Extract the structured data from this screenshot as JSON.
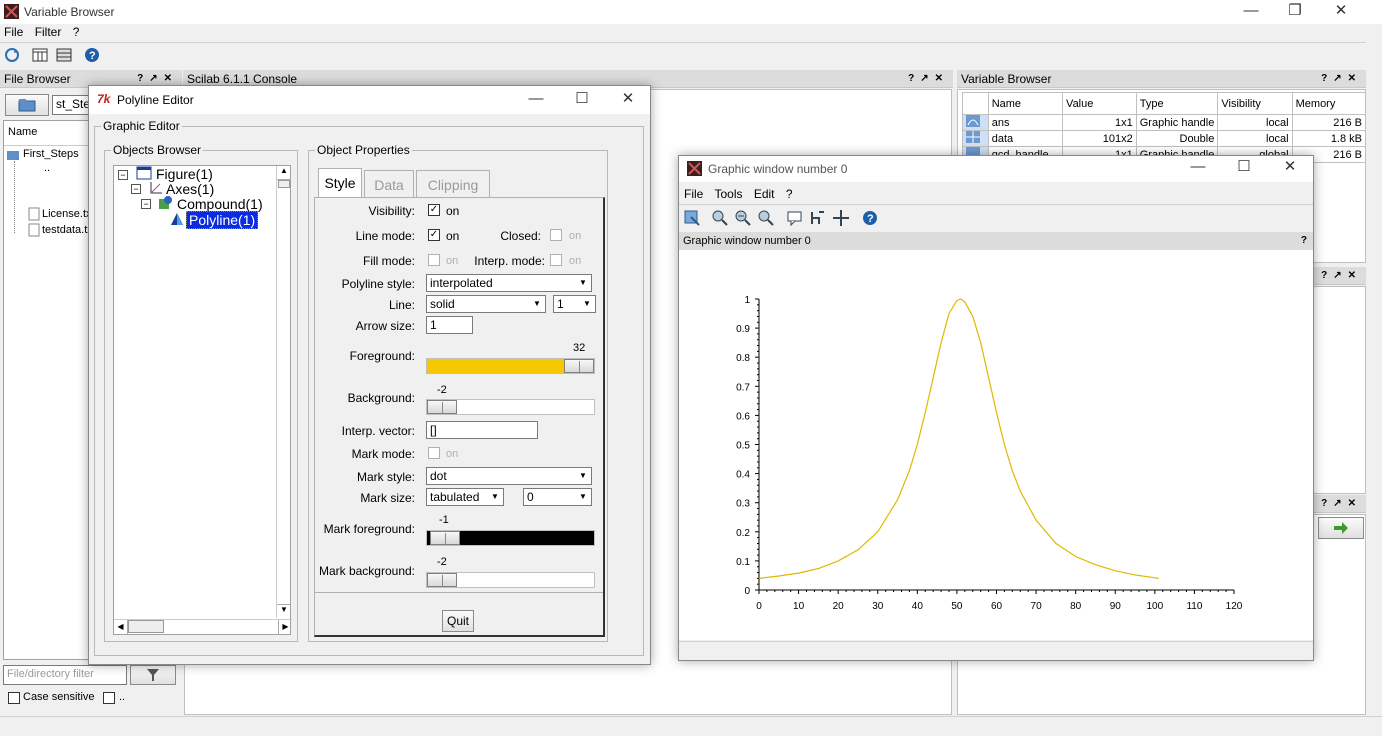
{
  "main_window": {
    "title": "Variable Browser",
    "menu": [
      "File",
      "Filter",
      "?"
    ]
  },
  "file_browser": {
    "title": "File Browser",
    "path_value": "st_Steps",
    "column_name": "Name",
    "items": [
      "First_Steps",
      "..",
      "License.txt",
      "testdata.txt"
    ],
    "filter_placeholder": "File/directory filter",
    "case_sensitive": "Case sensitive",
    "regexp": ".."
  },
  "console": {
    "title": "Scilab 6.1.1 Console"
  },
  "variable_browser": {
    "title": "Variable Browser",
    "columns": [
      "Name",
      "Value",
      "Type",
      "Visibility",
      "Memory"
    ],
    "rows": [
      {
        "name": "ans",
        "value": "1x1",
        "type": "Graphic handle",
        "visibility": "local",
        "memory": "216 B"
      },
      {
        "name": "data",
        "value": "101x2",
        "type": "Double",
        "visibility": "local",
        "memory": "1.8 kB"
      },
      {
        "name": "gcd_handle",
        "value": "1x1",
        "type": "Graphic handle",
        "visibility": "global",
        "memory": "216 B"
      }
    ]
  },
  "polyline_editor": {
    "title": "Polyline Editor",
    "graphic_editor": "Graphic Editor",
    "objects_browser": "Objects Browser",
    "tree": [
      "Figure(1)",
      "Axes(1)",
      "Compound(1)",
      "Polyline(1)"
    ],
    "object_properties": "Object Properties",
    "tabs": [
      "Style",
      "Data",
      "Clipping"
    ],
    "labels": {
      "visibility": "Visibility:",
      "line_mode": "Line mode:",
      "closed": "Closed:",
      "fill_mode": "Fill mode:",
      "interp_mode": "Interp. mode:",
      "polyline_style": "Polyline style:",
      "line": "Line:",
      "arrow_size": "Arrow size:",
      "foreground": "Foreground:",
      "background": "Background:",
      "interp_vector": "Interp. vector:",
      "mark_mode": "Mark mode:",
      "mark_style": "Mark style:",
      "mark_size": "Mark size:",
      "mark_foreground": "Mark foreground:",
      "mark_background": "Mark background:"
    },
    "on": "on",
    "values": {
      "polyline_style": "interpolated",
      "line_style": "solid",
      "line_width": "1",
      "arrow_size": "1",
      "foreground": "32",
      "background": "-2",
      "interp_vector": "[]",
      "mark_style": "dot",
      "mark_size_unit": "tabulated",
      "mark_size": "0",
      "mark_foreground": "-1",
      "mark_background": "-2"
    },
    "quit": "Quit",
    "colors": {
      "foreground": "#f5c800",
      "mark_foreground": "#000000"
    }
  },
  "graphic_window": {
    "title": "Graphic window number 0",
    "menu": [
      "File",
      "Tools",
      "Edit",
      "?"
    ],
    "dock_title": "Graphic window number 0"
  },
  "chart_data": {
    "type": "line",
    "xlim": [
      0,
      120
    ],
    "ylim": [
      0,
      1
    ],
    "x_ticks": [
      0,
      10,
      20,
      30,
      40,
      50,
      60,
      70,
      80,
      90,
      100,
      110,
      120
    ],
    "y_ticks": [
      0,
      0.1,
      0.2,
      0.3,
      0.4,
      0.5,
      0.6,
      0.7,
      0.8,
      0.9,
      1
    ],
    "x_tick_labels": [
      "0",
      "10",
      "20",
      "30",
      "40",
      "50",
      "60",
      "70",
      "80",
      "90",
      "100",
      "110",
      "120"
    ],
    "y_tick_labels": [
      "0",
      "0.1",
      "0.2",
      "0.3",
      "0.4",
      "0.5",
      "0.6",
      "0.7",
      "0.8",
      "0.9",
      "1"
    ],
    "series": [
      {
        "color": "#e0b800",
        "x": [
          0,
          5,
          10,
          15,
          20,
          25,
          30,
          35,
          38,
          40,
          42,
          44,
          46,
          48,
          50,
          51,
          52,
          54,
          56,
          58,
          60,
          62,
          64,
          66,
          70,
          75,
          80,
          85,
          90,
          95,
          100,
          101
        ],
        "y": [
          0.04,
          0.048,
          0.058,
          0.074,
          0.1,
          0.138,
          0.2,
          0.31,
          0.41,
          0.5,
          0.61,
          0.73,
          0.85,
          0.95,
          0.995,
          1.0,
          0.99,
          0.94,
          0.85,
          0.73,
          0.61,
          0.5,
          0.41,
          0.34,
          0.24,
          0.16,
          0.115,
          0.087,
          0.066,
          0.052,
          0.042,
          0.04
        ]
      }
    ],
    "grid": false
  }
}
